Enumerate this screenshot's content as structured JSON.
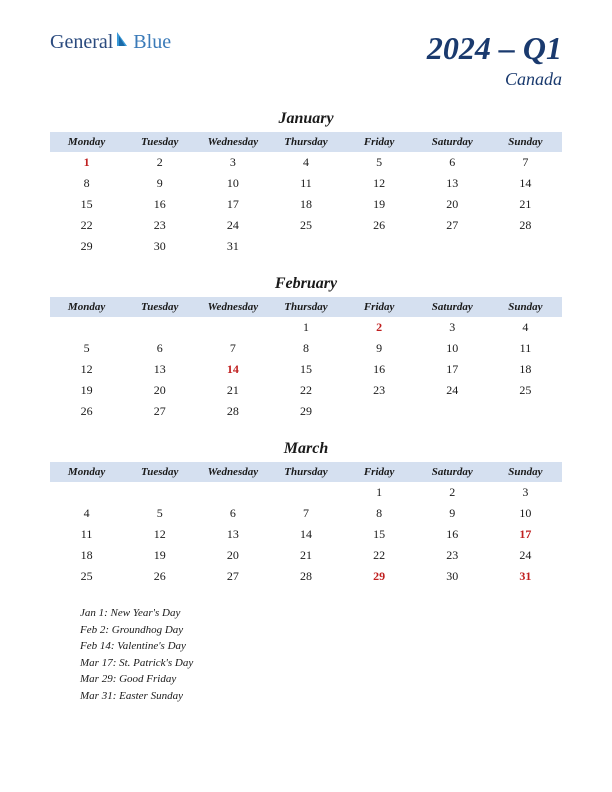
{
  "logo": {
    "text1": "General",
    "text2": "Blue"
  },
  "title": {
    "main": "2024 – Q1",
    "sub": "Canada"
  },
  "colors": {
    "header_bg": "#d5e0f0",
    "title_color": "#1a3a6e",
    "text_color": "#1a1a1a",
    "holiday_color": "#c02020",
    "logo_color1": "#2a4a7e",
    "logo_color2": "#3a7ab8",
    "background": "#ffffff"
  },
  "day_headers": [
    "Monday",
    "Tuesday",
    "Wednesday",
    "Thursday",
    "Friday",
    "Saturday",
    "Sunday"
  ],
  "months": [
    {
      "name": "January",
      "weeks": [
        [
          {
            "d": 1,
            "h": true
          },
          {
            "d": 2
          },
          {
            "d": 3
          },
          {
            "d": 4
          },
          {
            "d": 5
          },
          {
            "d": 6
          },
          {
            "d": 7
          }
        ],
        [
          {
            "d": 8
          },
          {
            "d": 9
          },
          {
            "d": 10
          },
          {
            "d": 11
          },
          {
            "d": 12
          },
          {
            "d": 13
          },
          {
            "d": 14
          }
        ],
        [
          {
            "d": 15
          },
          {
            "d": 16
          },
          {
            "d": 17
          },
          {
            "d": 18
          },
          {
            "d": 19
          },
          {
            "d": 20
          },
          {
            "d": 21
          }
        ],
        [
          {
            "d": 22
          },
          {
            "d": 23
          },
          {
            "d": 24
          },
          {
            "d": 25
          },
          {
            "d": 26
          },
          {
            "d": 27
          },
          {
            "d": 28
          }
        ],
        [
          {
            "d": 29
          },
          {
            "d": 30
          },
          {
            "d": 31
          },
          {},
          {},
          {},
          {}
        ]
      ]
    },
    {
      "name": "February",
      "weeks": [
        [
          {},
          {},
          {},
          {
            "d": 1
          },
          {
            "d": 2,
            "h": true
          },
          {
            "d": 3
          },
          {
            "d": 4
          }
        ],
        [
          {
            "d": 5
          },
          {
            "d": 6
          },
          {
            "d": 7
          },
          {
            "d": 8
          },
          {
            "d": 9
          },
          {
            "d": 10
          },
          {
            "d": 11
          }
        ],
        [
          {
            "d": 12
          },
          {
            "d": 13
          },
          {
            "d": 14,
            "h": true
          },
          {
            "d": 15
          },
          {
            "d": 16
          },
          {
            "d": 17
          },
          {
            "d": 18
          }
        ],
        [
          {
            "d": 19
          },
          {
            "d": 20
          },
          {
            "d": 21
          },
          {
            "d": 22
          },
          {
            "d": 23
          },
          {
            "d": 24
          },
          {
            "d": 25
          }
        ],
        [
          {
            "d": 26
          },
          {
            "d": 27
          },
          {
            "d": 28
          },
          {
            "d": 29
          },
          {},
          {},
          {}
        ]
      ]
    },
    {
      "name": "March",
      "weeks": [
        [
          {},
          {},
          {},
          {},
          {
            "d": 1
          },
          {
            "d": 2
          },
          {
            "d": 3
          }
        ],
        [
          {
            "d": 4
          },
          {
            "d": 5
          },
          {
            "d": 6
          },
          {
            "d": 7
          },
          {
            "d": 8
          },
          {
            "d": 9
          },
          {
            "d": 10
          }
        ],
        [
          {
            "d": 11
          },
          {
            "d": 12
          },
          {
            "d": 13
          },
          {
            "d": 14
          },
          {
            "d": 15
          },
          {
            "d": 16
          },
          {
            "d": 17,
            "h": true
          }
        ],
        [
          {
            "d": 18
          },
          {
            "d": 19
          },
          {
            "d": 20
          },
          {
            "d": 21
          },
          {
            "d": 22
          },
          {
            "d": 23
          },
          {
            "d": 24
          }
        ],
        [
          {
            "d": 25
          },
          {
            "d": 26
          },
          {
            "d": 27
          },
          {
            "d": 28
          },
          {
            "d": 29,
            "h": true
          },
          {
            "d": 30
          },
          {
            "d": 31,
            "h": true
          }
        ]
      ]
    }
  ],
  "holiday_list": [
    "Jan 1: New Year's Day",
    "Feb 2: Groundhog Day",
    "Feb 14: Valentine's Day",
    "Mar 17: St. Patrick's Day",
    "Mar 29: Good Friday",
    "Mar 31: Easter Sunday"
  ]
}
